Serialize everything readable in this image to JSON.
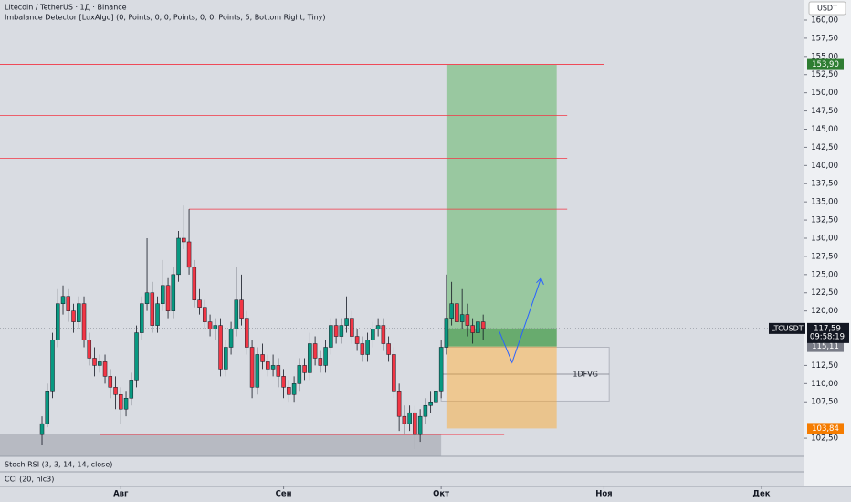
{
  "chart_data": {
    "type": "candlestick",
    "title": "Litecoin / TetherUS · 1Д · Binance",
    "subtitle": "Imbalance Detector [LuxAlgo] (0, Points, 0, 0, Points, 0, 0, Points, 5, Bottom Right, Tiny)",
    "currency": "USDT",
    "up_color": "#089981",
    "down_color": "#f23645",
    "xlim": [
      -8,
      145
    ],
    "ylim": [
      100,
      162.76
    ],
    "xticks": [
      {
        "value": 15,
        "label": "Авг"
      },
      {
        "value": 46,
        "label": "Сен"
      },
      {
        "value": 76,
        "label": "Окт"
      },
      {
        "value": 107,
        "label": "Ноя"
      },
      {
        "value": 137,
        "label": "Дек"
      }
    ],
    "yticks": [
      {
        "value": 160,
        "label": "160,00"
      },
      {
        "value": 157.5,
        "label": "157,50"
      },
      {
        "value": 155,
        "label": "155,00"
      },
      {
        "value": 152.5,
        "label": "152,50"
      },
      {
        "value": 150,
        "label": "150,00"
      },
      {
        "value": 147.5,
        "label": "147,50"
      },
      {
        "value": 145,
        "label": "145,00"
      },
      {
        "value": 142.5,
        "label": "142,50"
      },
      {
        "value": 140,
        "label": "140,00"
      },
      {
        "value": 137.5,
        "label": "137,50"
      },
      {
        "value": 135,
        "label": "135,00"
      },
      {
        "value": 132.5,
        "label": "132,50"
      },
      {
        "value": 130,
        "label": "130,00"
      },
      {
        "value": 127.5,
        "label": "127,50"
      },
      {
        "value": 125,
        "label": "125,00"
      },
      {
        "value": 122.5,
        "label": "122,50"
      },
      {
        "value": 120,
        "label": "120,00"
      },
      {
        "value": 112.5,
        "label": "112,50"
      },
      {
        "value": 110,
        "label": "110,00"
      },
      {
        "value": 107.5,
        "label": "107,50"
      },
      {
        "value": 102.5,
        "label": "102,50"
      }
    ],
    "open": [
      103,
      104.5,
      109,
      116,
      121,
      122,
      120,
      118.5,
      121,
      116,
      113.5,
      112.5,
      113,
      111,
      109.5,
      108.5,
      106.5,
      108,
      110.5,
      117,
      121,
      122.5,
      118,
      121,
      123.5,
      120,
      125,
      130,
      129.5,
      126,
      121.5,
      120.5,
      118.5,
      117.5,
      118,
      112,
      115,
      117.5,
      121.5,
      119,
      115,
      109.5,
      114,
      113,
      112,
      112.5,
      111,
      109.5,
      108.5,
      110,
      112.5,
      111.5,
      115.5,
      113.5,
      112.5,
      115,
      118,
      116.5,
      118,
      119,
      116.5,
      115.5,
      114,
      116,
      117.5,
      118,
      115.5,
      114,
      109,
      105.5,
      104.5,
      106,
      103,
      105.5,
      107,
      107.5,
      109,
      115,
      119,
      121,
      118.5,
      119.5,
      118,
      117,
      118.5
    ],
    "high": [
      105.5,
      110,
      117,
      123,
      123.5,
      123,
      121,
      122,
      122,
      117,
      115,
      114,
      114,
      112,
      111,
      109.5,
      109,
      111.5,
      118,
      122,
      130,
      124,
      122,
      127,
      124.5,
      126,
      131,
      134.5,
      134,
      127,
      123,
      121.5,
      119.5,
      119,
      119,
      116,
      118.5,
      126,
      125,
      120,
      116,
      115,
      115.5,
      114,
      114,
      113.5,
      112,
      110.5,
      111,
      113.5,
      113.5,
      117,
      116.5,
      114.5,
      116,
      119,
      119,
      119,
      122,
      120,
      117.5,
      116.5,
      117,
      118.5,
      119,
      119,
      116.5,
      115,
      110,
      107,
      107,
      107,
      106.5,
      108,
      109,
      110,
      116,
      125,
      124,
      125,
      123,
      121,
      119,
      119,
      119.5
    ],
    "low": [
      101.5,
      104,
      108,
      115,
      119.5,
      118.5,
      117,
      117.5,
      115,
      112.5,
      111,
      111.5,
      110,
      108,
      106.5,
      104.5,
      105.5,
      107,
      109.5,
      116,
      120,
      117,
      117,
      120,
      119,
      119,
      124,
      128.5,
      125,
      120.5,
      119.5,
      117.5,
      116.5,
      116,
      111,
      111,
      114,
      116.5,
      118,
      114,
      108,
      108.5,
      112,
      111,
      111,
      109.5,
      108,
      107.5,
      107.5,
      109,
      110.5,
      110.5,
      112.5,
      111.5,
      111.5,
      114,
      115.5,
      115.5,
      117,
      115.5,
      114.5,
      113,
      113,
      115,
      116.5,
      114.5,
      113,
      108,
      103.5,
      103,
      103.5,
      101,
      102,
      104.5,
      106,
      106.5,
      108,
      114,
      118,
      117,
      117.5,
      116.5,
      115.5,
      116,
      116
    ],
    "close": [
      104.5,
      109,
      116,
      121,
      122,
      120,
      118.5,
      121,
      116,
      113.5,
      112.5,
      113,
      111,
      109.5,
      108.5,
      106.5,
      108,
      110.5,
      117,
      121,
      122.5,
      118,
      121,
      123.5,
      120,
      125,
      130,
      129.5,
      126,
      121.5,
      120.5,
      118.5,
      117.5,
      118,
      112,
      115,
      117.5,
      121.5,
      119,
      115,
      109.5,
      114,
      113,
      112,
      112.5,
      111,
      109.5,
      108.5,
      110,
      112.5,
      111.5,
      115.5,
      113.5,
      112.5,
      115,
      118,
      116.5,
      118,
      119,
      116.5,
      115.5,
      114,
      116,
      117.5,
      118,
      115.5,
      114,
      109,
      105.5,
      104.5,
      106,
      103,
      105.5,
      107,
      107.5,
      109,
      115,
      119,
      121,
      118.5,
      119.5,
      118,
      117,
      118.5,
      117.59
    ],
    "levels": [
      {
        "value": 153.9,
        "from": -8,
        "to": 107
      },
      {
        "value": 146.9,
        "from": -8,
        "to": 100
      },
      {
        "value": 141,
        "from": -8,
        "to": 100
      },
      {
        "value": 134,
        "from": 28,
        "to": 100
      },
      {
        "value": 103,
        "from": 11,
        "to": 88
      }
    ],
    "level_color": "#f23645",
    "zone": {
      "from": -8,
      "to": 76,
      "top": 103.1,
      "bottom": 100
    },
    "fvg": {
      "from": 76,
      "to": 108,
      "top": 115,
      "bottom": 107.6,
      "label": "1DFVG"
    },
    "position": {
      "from": 77,
      "to": 98,
      "target": 153.9,
      "target_label": "153,90",
      "entry": 115.11,
      "entry_label": "115,11",
      "stop": 103.84,
      "stop_label": "103,84"
    },
    "projection": {
      "x": [
        87,
        89.5,
        95
      ],
      "y": [
        117.3,
        112.9,
        124.5
      ]
    },
    "last": {
      "value": 117.59,
      "label": "117,59",
      "symbol": "LTCUSDT",
      "countdown": "09:58:19"
    },
    "indicators": [
      "Stoch RSI (3, 3, 14, 14, close)",
      "CCI (20, hlc3)"
    ]
  }
}
